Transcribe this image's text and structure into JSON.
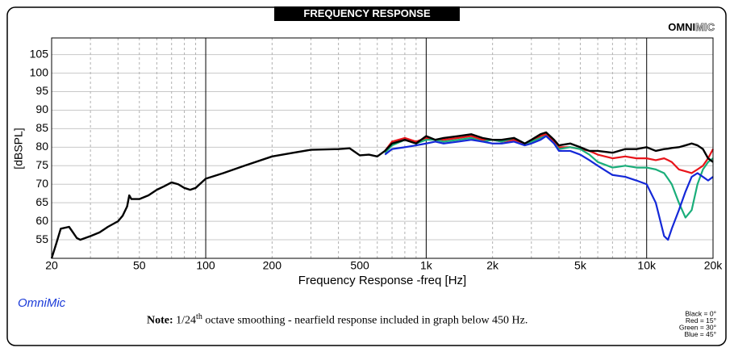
{
  "chart_data": {
    "type": "line",
    "title": "FREQUENCY RESPONSE",
    "brand": {
      "bold": "OMNI",
      "light": "MIC"
    },
    "app_name": "OmniMic",
    "note": {
      "label": "Note:",
      "fraction": "1/24",
      "sup": "th",
      "text": " octave smoothing - nearfield response included in graph below 450 Hz."
    },
    "x_label": "Frequency Response -freq [Hz]",
    "y_label": "[dBSPL]",
    "xscale": "log",
    "xlim": [
      20,
      20000
    ],
    "ylim": [
      50,
      109.5
    ],
    "xticks": [
      20,
      50,
      100,
      200,
      500,
      {
        "value": 1000,
        "label": "1k"
      },
      {
        "value": 2000,
        "label": "2k"
      },
      {
        "value": 5000,
        "label": "5k"
      },
      {
        "value": 10000,
        "label": "10k"
      },
      {
        "value": 20000,
        "label": "20k"
      }
    ],
    "xminorticks": [
      30,
      40,
      60,
      70,
      80,
      90,
      300,
      400,
      600,
      700,
      800,
      900,
      3000,
      4000,
      6000,
      7000,
      8000,
      9000
    ],
    "yticks": [
      55,
      60,
      65,
      70,
      75,
      80,
      85,
      90,
      95,
      100,
      105
    ],
    "grid": true,
    "legend": "bottom-right",
    "x": [
      20,
      21,
      22,
      24,
      25,
      26,
      27,
      30,
      33,
      36,
      40,
      42,
      44,
      45,
      46,
      50,
      55,
      60,
      65,
      70,
      75,
      80,
      85,
      90,
      100,
      120,
      150,
      200,
      250,
      300,
      400,
      450,
      500,
      550,
      600,
      650,
      700,
      800,
      900,
      1000,
      1100,
      1200,
      1400,
      1600,
      1800,
      2000,
      2200,
      2500,
      2800,
      3000,
      3300,
      3500,
      3800,
      4000,
      4500,
      5000,
      5500,
      6000,
      7000,
      8000,
      9000,
      10000,
      11000,
      12000,
      12500,
      13000,
      14000,
      15000,
      16000,
      17000,
      18000,
      19000,
      20000
    ],
    "series": [
      {
        "name": "Black = 0°",
        "color": "#000000",
        "values": [
          50,
          54,
          58,
          58.5,
          57,
          55.5,
          55,
          56,
          57,
          58.5,
          60,
          61.5,
          64,
          67,
          66,
          66,
          67,
          68.5,
          69.5,
          70.5,
          70,
          69,
          68.5,
          69,
          71.5,
          73,
          75,
          77.5,
          78.5,
          79.3,
          79.5,
          79.7,
          77.8,
          78,
          77.5,
          79,
          81,
          82,
          81,
          83,
          82,
          82.5,
          83,
          83.5,
          82.5,
          82,
          82,
          82.5,
          81,
          82,
          83.5,
          84,
          82,
          80.5,
          81,
          80,
          79,
          79,
          78.5,
          79.5,
          79.5,
          80,
          79,
          79.5,
          79.6,
          79.8,
          80,
          80.5,
          81,
          80.5,
          79.5,
          77,
          76
        ]
      },
      {
        "name": "Red = 15°",
        "color": "#e8141a",
        "values": [
          null,
          null,
          null,
          null,
          null,
          null,
          null,
          null,
          null,
          null,
          null,
          null,
          null,
          null,
          null,
          null,
          null,
          null,
          null,
          null,
          null,
          null,
          null,
          null,
          null,
          null,
          null,
          null,
          null,
          null,
          null,
          null,
          null,
          null,
          null,
          79,
          81.5,
          82.5,
          81.5,
          82.5,
          82,
          82,
          82.5,
          83,
          82,
          82,
          81.5,
          82,
          81,
          81.5,
          83,
          83.5,
          81.5,
          80,
          80,
          79.5,
          79,
          78,
          77,
          77.5,
          77,
          77,
          76.5,
          77,
          76.5,
          76,
          74,
          73.5,
          73,
          74,
          75,
          77,
          79.5
        ]
      },
      {
        "name": "Green = 30°",
        "color": "#1aae7a",
        "values": [
          null,
          null,
          null,
          null,
          null,
          null,
          null,
          null,
          null,
          null,
          null,
          null,
          null,
          null,
          null,
          null,
          null,
          null,
          null,
          null,
          null,
          null,
          null,
          null,
          null,
          null,
          null,
          null,
          null,
          null,
          null,
          null,
          null,
          null,
          null,
          78.5,
          80.5,
          82,
          81,
          82,
          82,
          81.5,
          82,
          82.5,
          81.5,
          82,
          81.5,
          82.5,
          81,
          81.5,
          82.5,
          83,
          81,
          79.5,
          80,
          79.5,
          78,
          76,
          74.5,
          75,
          74.5,
          74.5,
          74,
          73,
          71.5,
          70,
          65,
          61,
          63,
          70,
          74,
          76,
          77
        ]
      },
      {
        "name": "Blue = 45°",
        "color": "#1428d8",
        "values": [
          null,
          null,
          null,
          null,
          null,
          null,
          null,
          null,
          null,
          null,
          null,
          null,
          null,
          null,
          null,
          null,
          null,
          null,
          null,
          null,
          null,
          null,
          null,
          null,
          null,
          null,
          null,
          null,
          null,
          null,
          null,
          null,
          null,
          null,
          null,
          78,
          79.5,
          80,
          80.5,
          81,
          81.5,
          81,
          81.5,
          82,
          81.5,
          81,
          81,
          81.5,
          80.5,
          81,
          82,
          83,
          81,
          79,
          79,
          78,
          76.5,
          75,
          72.5,
          72,
          71,
          70,
          65,
          56,
          55,
          58,
          63,
          68,
          72,
          73,
          72,
          71,
          72
        ]
      }
    ]
  }
}
